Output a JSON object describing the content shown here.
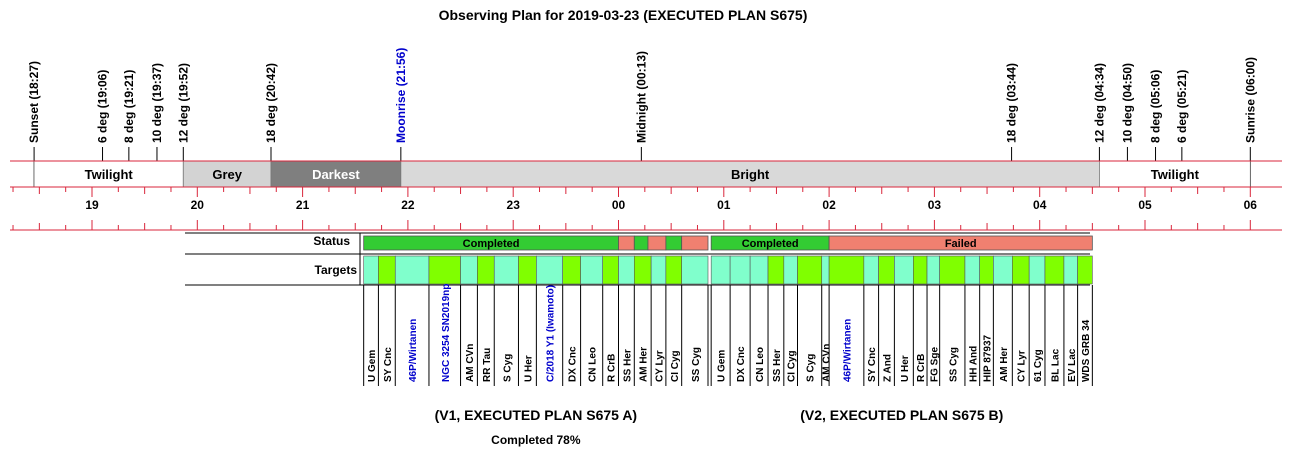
{
  "title": "Observing Plan for 2019-03-23 (EXECUTED PLAN S675)",
  "colors": {
    "axis_red": "#d9263b",
    "twilight": "#ffffff",
    "grey": "#d3d3d3",
    "darkest": "#7f7f7f",
    "bright": "#d9d9d9",
    "completed_green": "#33cc33",
    "failed_salmon": "#f08070",
    "target_cyan": "#80ffcc",
    "target_green": "#80ff00",
    "label_blue": "#0000cc",
    "label_black": "#000000"
  },
  "chart_data": {
    "type": "timeline",
    "x_unit": "hours (UT, 2019-03-23/24)",
    "xlim": [
      18.0,
      30.1
    ],
    "hour_ticks": [
      19,
      20,
      21,
      22,
      23,
      24,
      25,
      26,
      27,
      28,
      29,
      30
    ],
    "hour_tick_labels": [
      "19",
      "20",
      "21",
      "22",
      "23",
      "00",
      "01",
      "02",
      "03",
      "04",
      "05",
      "06"
    ],
    "events": [
      {
        "label": "Sunset (18:27)",
        "t": 18.45,
        "color": "black"
      },
      {
        "label": "6 deg (19:06)",
        "t": 19.1,
        "color": "black"
      },
      {
        "label": "8 deg (19:21)",
        "t": 19.35,
        "color": "black"
      },
      {
        "label": "10 deg (19:37)",
        "t": 19.617,
        "color": "black"
      },
      {
        "label": "12 deg (19:52)",
        "t": 19.867,
        "color": "black"
      },
      {
        "label": "18 deg (20:42)",
        "t": 20.7,
        "color": "black"
      },
      {
        "label": "Moonrise (21:56)",
        "t": 21.933,
        "color": "blue"
      },
      {
        "label": "Midnight (00:13)",
        "t": 24.217,
        "color": "black"
      },
      {
        "label": "18 deg (03:44)",
        "t": 27.733,
        "color": "black"
      },
      {
        "label": "12 deg (04:34)",
        "t": 28.567,
        "color": "black"
      },
      {
        "label": "10 deg (04:50)",
        "t": 28.833,
        "color": "black"
      },
      {
        "label": "8 deg (05:06)",
        "t": 29.1,
        "color": "black"
      },
      {
        "label": "6 deg (05:21)",
        "t": 29.35,
        "color": "black"
      },
      {
        "label": "Sunrise (06:00)",
        "t": 30.0,
        "color": "black"
      }
    ],
    "sky_bands": [
      {
        "label": "Twilight",
        "start": 18.45,
        "end": 19.867,
        "kind": "twilight"
      },
      {
        "label": "Grey",
        "start": 19.867,
        "end": 20.7,
        "kind": "grey"
      },
      {
        "label": "Darkest",
        "start": 20.7,
        "end": 21.933,
        "kind": "darkest"
      },
      {
        "label": "Bright",
        "start": 21.933,
        "end": 28.567,
        "kind": "bright"
      },
      {
        "label": "Twilight",
        "start": 28.567,
        "end": 30.0,
        "kind": "twilight"
      }
    ],
    "row_labels": {
      "status": "Status",
      "targets": "Targets"
    },
    "status_segments": [
      {
        "label": "Completed",
        "start": 21.58,
        "end": 24.0,
        "status": "completed"
      },
      {
        "label": "",
        "start": 24.0,
        "end": 24.15,
        "status": "failed"
      },
      {
        "label": "",
        "start": 24.15,
        "end": 24.28,
        "status": "completed"
      },
      {
        "label": "",
        "start": 24.28,
        "end": 24.45,
        "status": "failed"
      },
      {
        "label": "",
        "start": 24.45,
        "end": 24.6,
        "status": "completed"
      },
      {
        "label": "",
        "start": 24.6,
        "end": 24.85,
        "status": "failed"
      },
      {
        "label": "Completed",
        "start": 24.88,
        "end": 26.0,
        "status": "completed"
      },
      {
        "label": "Failed",
        "start": 26.0,
        "end": 28.5,
        "status": "failed"
      }
    ],
    "targets": [
      {
        "name": "U Gem",
        "start": 21.58,
        "end": 21.72,
        "fill": "cyan",
        "color": "black"
      },
      {
        "name": "SY Cnc",
        "start": 21.72,
        "end": 21.88,
        "fill": "green",
        "color": "black"
      },
      {
        "name": "46P/Wirtanen",
        "start": 21.88,
        "end": 22.2,
        "fill": "cyan",
        "color": "blue"
      },
      {
        "name": "NGC 3254 SN2019np",
        "start": 22.2,
        "end": 22.5,
        "fill": "green",
        "color": "blue"
      },
      {
        "name": "AM CVn",
        "start": 22.5,
        "end": 22.66,
        "fill": "cyan",
        "color": "black"
      },
      {
        "name": "RR Tau",
        "start": 22.66,
        "end": 22.82,
        "fill": "green",
        "color": "black"
      },
      {
        "name": "S Cyg",
        "start": 22.82,
        "end": 23.05,
        "fill": "cyan",
        "color": "black"
      },
      {
        "name": "U Her",
        "start": 23.05,
        "end": 23.22,
        "fill": "green",
        "color": "black"
      },
      {
        "name": "C/2018 Y1 (Iwamoto)",
        "start": 23.22,
        "end": 23.47,
        "fill": "cyan",
        "color": "blue"
      },
      {
        "name": "DX Cnc",
        "start": 23.47,
        "end": 23.64,
        "fill": "green",
        "color": "black"
      },
      {
        "name": "CN Leo",
        "start": 23.64,
        "end": 23.85,
        "fill": "cyan",
        "color": "black"
      },
      {
        "name": "R CrB",
        "start": 23.85,
        "end": 24.0,
        "fill": "green",
        "color": "black"
      },
      {
        "name": "SS Her",
        "start": 24.0,
        "end": 24.15,
        "fill": "cyan",
        "color": "black"
      },
      {
        "name": "AM Her",
        "start": 24.15,
        "end": 24.31,
        "fill": "green",
        "color": "black"
      },
      {
        "name": "CY Lyr",
        "start": 24.31,
        "end": 24.45,
        "fill": "cyan",
        "color": "black"
      },
      {
        "name": "CI Cyg",
        "start": 24.45,
        "end": 24.6,
        "fill": "green",
        "color": "black"
      },
      {
        "name": "SS Cyg",
        "start": 24.6,
        "end": 24.85,
        "fill": "cyan",
        "color": "black"
      },
      {
        "name": "U Gem",
        "start": 24.88,
        "end": 25.06,
        "fill": "cyan",
        "color": "black"
      },
      {
        "name": "DX Cnc",
        "start": 25.06,
        "end": 25.25,
        "fill": "cyan",
        "color": "black"
      },
      {
        "name": "CN Leo",
        "start": 25.25,
        "end": 25.42,
        "fill": "cyan",
        "color": "black"
      },
      {
        "name": "SS Her",
        "start": 25.42,
        "end": 25.57,
        "fill": "green",
        "color": "black"
      },
      {
        "name": "CI Cyg",
        "start": 25.57,
        "end": 25.7,
        "fill": "cyan",
        "color": "black"
      },
      {
        "name": "S Cyg",
        "start": 25.7,
        "end": 25.93,
        "fill": "green",
        "color": "black"
      },
      {
        "name": "AM CVn",
        "start": 25.93,
        "end": 26.0,
        "fill": "cyan",
        "color": "black"
      },
      {
        "name": "46P/Wirtanen",
        "start": 26.0,
        "end": 26.33,
        "fill": "green",
        "color": "blue"
      },
      {
        "name": "SY Cnc",
        "start": 26.33,
        "end": 26.47,
        "fill": "cyan",
        "color": "black"
      },
      {
        "name": "Z And",
        "start": 26.47,
        "end": 26.62,
        "fill": "green",
        "color": "black"
      },
      {
        "name": "U Her",
        "start": 26.62,
        "end": 26.8,
        "fill": "cyan",
        "color": "black"
      },
      {
        "name": "R CrB",
        "start": 26.8,
        "end": 26.93,
        "fill": "green",
        "color": "black"
      },
      {
        "name": "FG Sge",
        "start": 26.93,
        "end": 27.05,
        "fill": "cyan",
        "color": "black"
      },
      {
        "name": "SS Cyg",
        "start": 27.05,
        "end": 27.29,
        "fill": "green",
        "color": "black"
      },
      {
        "name": "HH And",
        "start": 27.29,
        "end": 27.43,
        "fill": "cyan",
        "color": "black"
      },
      {
        "name": "HIP 87937",
        "start": 27.43,
        "end": 27.56,
        "fill": "green",
        "color": "black"
      },
      {
        "name": "AM Her",
        "start": 27.56,
        "end": 27.74,
        "fill": "cyan",
        "color": "black"
      },
      {
        "name": "CY Lyr",
        "start": 27.74,
        "end": 27.9,
        "fill": "green",
        "color": "black"
      },
      {
        "name": "61 Cyg",
        "start": 27.9,
        "end": 28.05,
        "fill": "cyan",
        "color": "black"
      },
      {
        "name": "BL Lac",
        "start": 28.05,
        "end": 28.23,
        "fill": "green",
        "color": "black"
      },
      {
        "name": "EV Lac",
        "start": 28.23,
        "end": 28.36,
        "fill": "cyan",
        "color": "black"
      },
      {
        "name": "WDS GRB 34",
        "start": 28.36,
        "end": 28.5,
        "fill": "green",
        "color": "black"
      }
    ],
    "plans": [
      {
        "label": "(V1, EXECUTED PLAN S675 A)",
        "sub": "Completed 78%",
        "start": 21.58,
        "end": 24.85
      },
      {
        "label": "(V2, EXECUTED PLAN S675 B)",
        "sub": "",
        "start": 24.88,
        "end": 28.5
      }
    ]
  }
}
